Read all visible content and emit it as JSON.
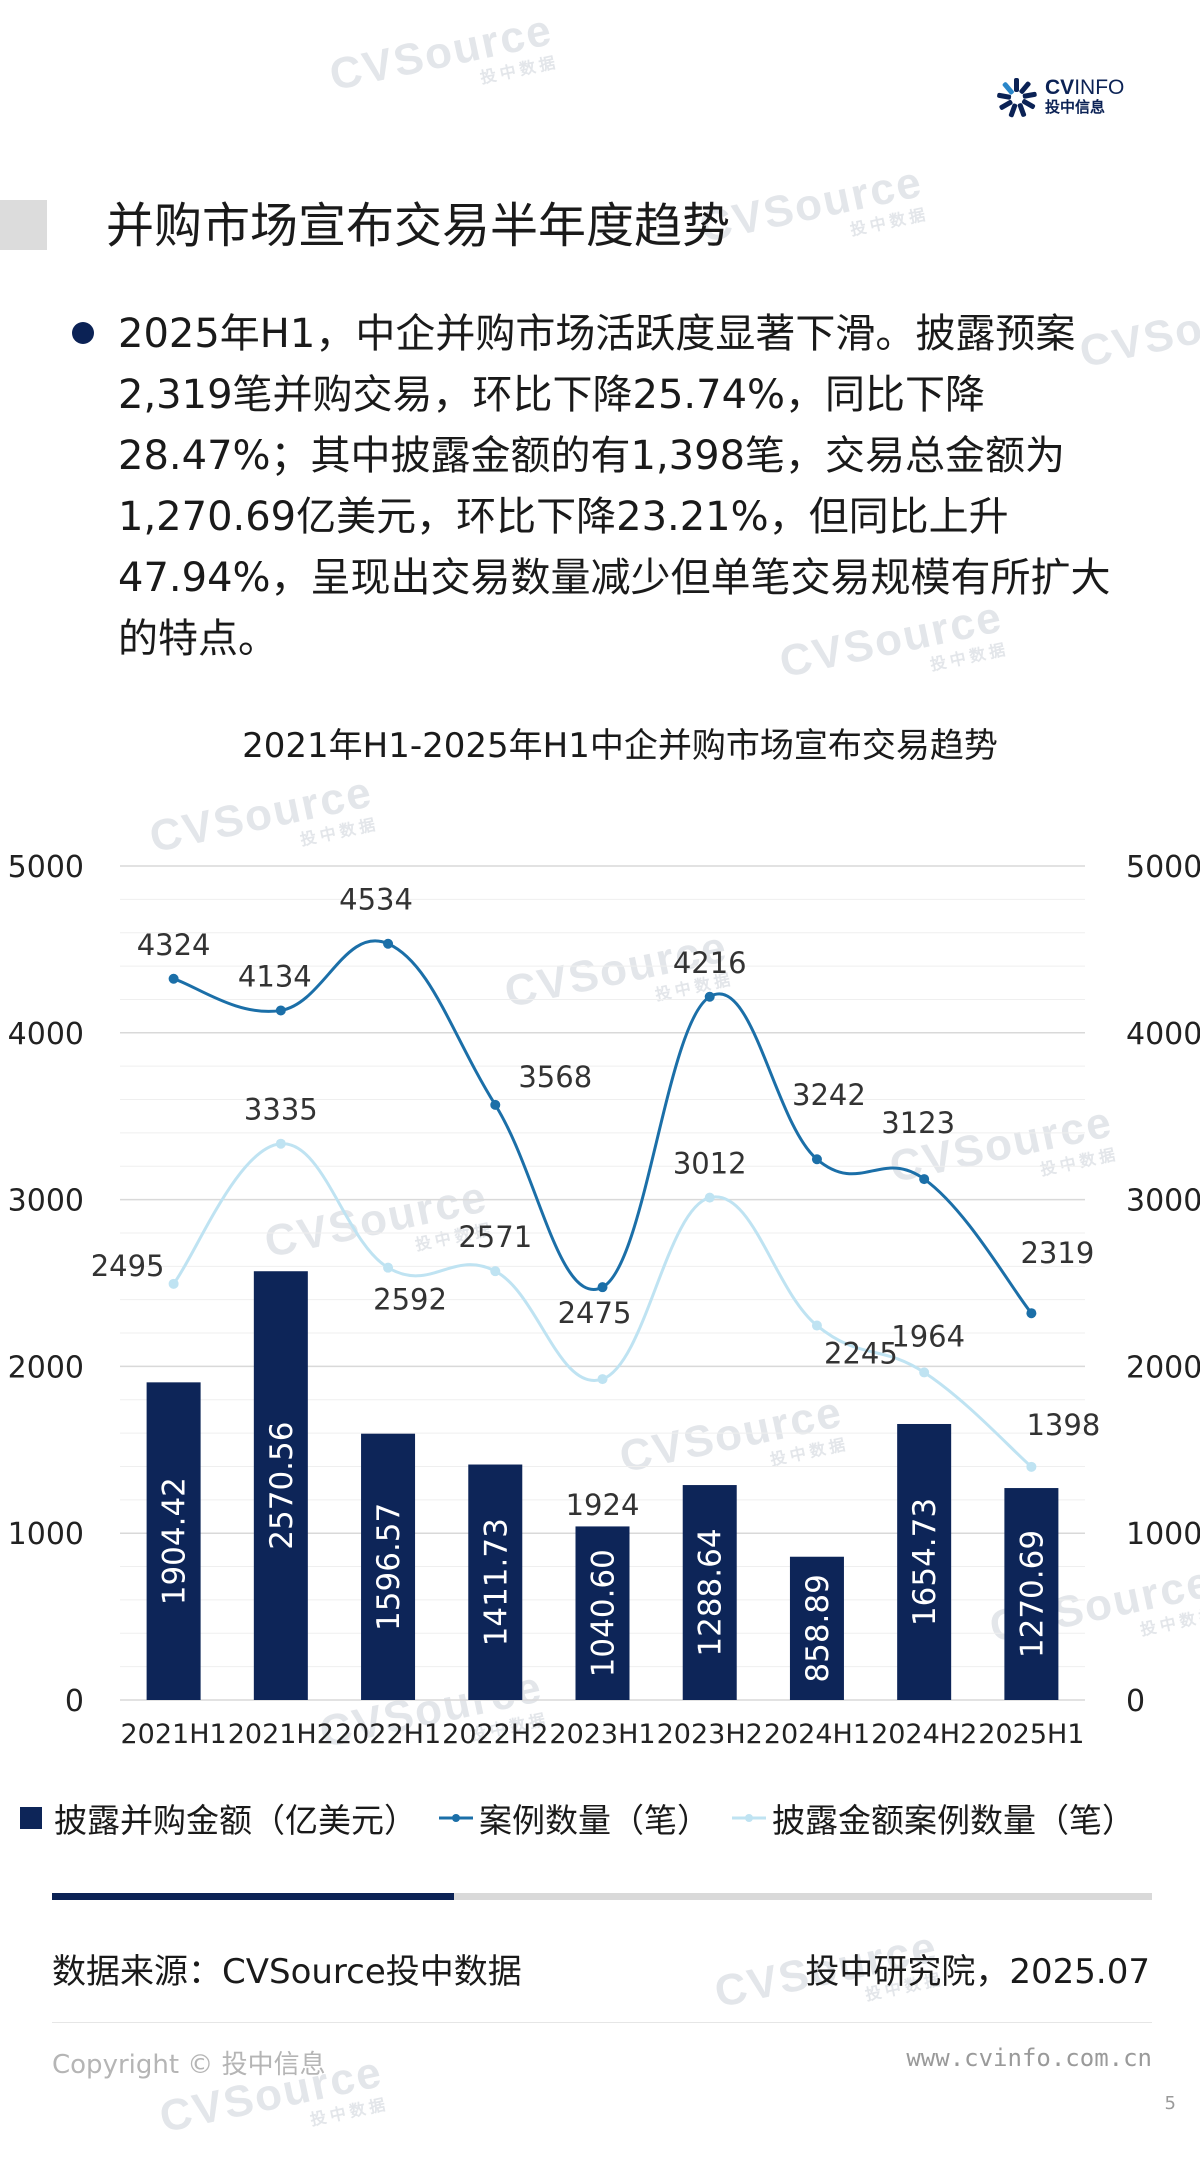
{
  "branding": {
    "logo_name_bold": "CV",
    "logo_name_light": "INFO",
    "logo_sub": "投中信息",
    "watermark": "CVSource",
    "watermark_sub": "投中数据"
  },
  "page_title": "并购市场宣布交易半年度趋势",
  "bullet_text": "2025年H1，中企并购市场活跃度显著下滑。披露预案2,319笔并购交易，环比下降25.74%，同比下降28.47%；其中披露金额的有1,398笔，交易总金额为1,270.69亿美元，环比下降23.21%，但同比上升47.94%，呈现出交易数量减少但单笔交易规模有所扩大的特点。",
  "chart_data": {
    "type": "bar+line",
    "title": "2021年H1-2025年H1中企并购市场宣布交易趋势",
    "categories": [
      "2021H1",
      "2021H2",
      "2022H1",
      "2022H2",
      "2023H1",
      "2023H2",
      "2024H1",
      "2024H2",
      "2025H1"
    ],
    "y_left": {
      "min": 0,
      "max": 5000,
      "ticks": [
        "0",
        "1000",
        "2000",
        "3000",
        "4000",
        "5000"
      ]
    },
    "y_right": {
      "min": 0,
      "max": 5000,
      "ticks": [
        "0",
        "1000",
        "2000",
        "3000",
        "4000",
        "5000"
      ]
    },
    "series": [
      {
        "name": "披露并购金额（亿美元）",
        "kind": "bar",
        "color": "#0d2558",
        "values": [
          1904.42,
          2570.56,
          1596.57,
          1411.73,
          1040.6,
          1288.64,
          858.89,
          1654.73,
          1270.69
        ],
        "labels": [
          "1904.42",
          "2570.56",
          "1596.57",
          "1411.73",
          "1040.60",
          "1288.64",
          "858.89",
          "1654.73",
          "1270.69"
        ]
      },
      {
        "name": "案例数量（笔）",
        "kind": "line",
        "color": "#1b6fa8",
        "values": [
          4324,
          4134,
          4534,
          3568,
          2475,
          4216,
          3242,
          3123,
          2319
        ],
        "labels": [
          "4324",
          "4134",
          "4534",
          "3568",
          "2475",
          "4216",
          "3242",
          "3123",
          "2319"
        ]
      },
      {
        "name": "披露金额案例数量（笔）",
        "kind": "line",
        "color": "#bfe3f2",
        "values": [
          2495,
          3335,
          2592,
          2571,
          1924,
          3012,
          2245,
          1964,
          1398
        ],
        "labels": [
          "2495",
          "3335",
          "2592",
          "2571",
          "1924",
          "3012",
          "2245",
          "1964",
          "1398"
        ]
      }
    ]
  },
  "progress_fraction": 0.365,
  "source_text": "数据来源：CVSource投中数据",
  "institute_text": "投中研究院，2025.07",
  "copyright": "Copyright © 投中信息",
  "website": "www.cvinfo.com.cn",
  "page_number": "5"
}
